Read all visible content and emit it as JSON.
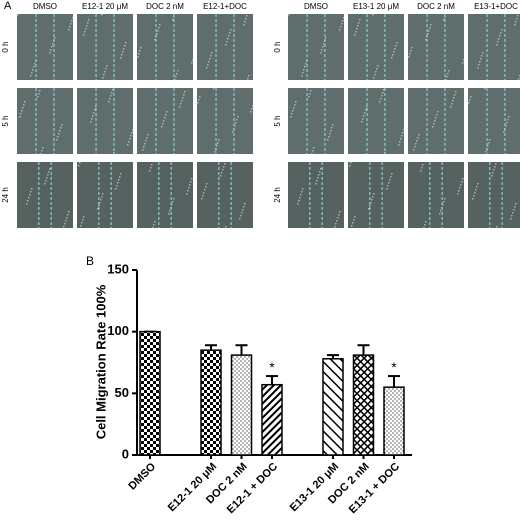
{
  "panel_a": {
    "label": "A",
    "left": {
      "columns": [
        "DMSO",
        "E12-1 20 μM",
        "DOC 2 nM",
        "E12-1+DOC"
      ],
      "rows": [
        "0 h",
        "5 h",
        "24 h"
      ]
    },
    "right": {
      "columns": [
        "DMSO",
        "E13-1 20 μM",
        "DOC 2 nM",
        "E13-1+DOC"
      ],
      "rows": [
        "0 h",
        "5 h",
        "24 h"
      ]
    }
  },
  "chart_data": {
    "type": "bar",
    "panel_label": "B",
    "y_label": "Cell Migration Rate 100%",
    "categories": [
      "DMSO",
      null,
      "E12-1 20 μM",
      "DOC 2 nM",
      "E12-1 + DOC",
      null,
      "E13-1 20 μM",
      "DOC 2 nM",
      "E13-1 + DOC"
    ],
    "values": [
      100,
      null,
      85,
      81,
      57,
      null,
      78,
      81,
      55
    ],
    "errors": [
      0,
      null,
      4,
      8,
      7,
      null,
      3,
      8,
      9
    ],
    "annotations": [
      null,
      null,
      null,
      null,
      "*",
      null,
      null,
      null,
      "*"
    ],
    "ylim": [
      0,
      150
    ],
    "yticks": [
      0,
      50,
      100,
      150
    ]
  }
}
